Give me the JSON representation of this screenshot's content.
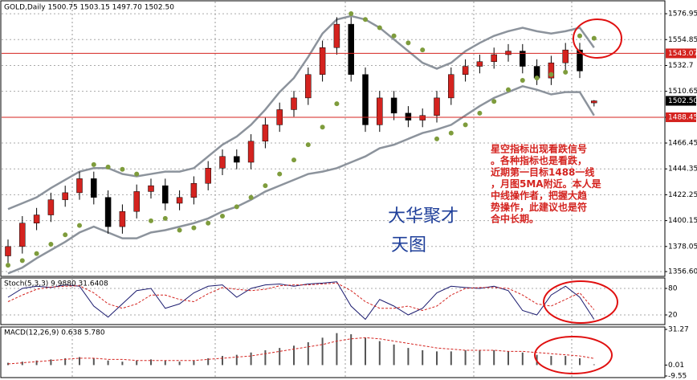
{
  "chart_data": [
    {
      "type": "candlestick",
      "title": "GOLD,Daily  1500.75 1503.15 1497.70 1502.50",
      "open": [
        1370,
        1378,
        1398,
        1405,
        1418,
        1424,
        1436,
        1420,
        1395,
        1408,
        1425,
        1430,
        1415,
        1420,
        1432,
        1445,
        1455,
        1450,
        1468,
        1482,
        1495,
        1505,
        1525,
        1548,
        1568,
        1525,
        1482,
        1505,
        1492,
        1486,
        1490,
        1505,
        1525,
        1532,
        1536,
        1542,
        1545,
        1532,
        1522,
        1535,
        1546,
        1500.75
      ],
      "high": [
        1384,
        1404,
        1411,
        1424,
        1430,
        1442,
        1442,
        1426,
        1414,
        1431,
        1436,
        1436,
        1426,
        1438,
        1451,
        1461,
        1461,
        1474,
        1488,
        1501,
        1511,
        1531,
        1554,
        1574,
        1574,
        1531,
        1511,
        1511,
        1498,
        1496,
        1511,
        1531,
        1538,
        1542,
        1548,
        1551,
        1551,
        1538,
        1541,
        1552,
        1552,
        1503.15
      ],
      "low": [
        1364,
        1372,
        1392,
        1399,
        1412,
        1418,
        1414,
        1389,
        1389,
        1402,
        1419,
        1409,
        1409,
        1414,
        1426,
        1439,
        1444,
        1444,
        1462,
        1476,
        1489,
        1499,
        1519,
        1542,
        1519,
        1476,
        1476,
        1486,
        1480,
        1480,
        1484,
        1499,
        1519,
        1526,
        1530,
        1536,
        1526,
        1516,
        1516,
        1529,
        1522,
        1497.7
      ],
      "close": [
        1378,
        1398,
        1405,
        1418,
        1424,
        1436,
        1420,
        1395,
        1408,
        1425,
        1430,
        1415,
        1420,
        1432,
        1445,
        1455,
        1450,
        1468,
        1482,
        1495,
        1505,
        1525,
        1548,
        1568,
        1525,
        1482,
        1505,
        1492,
        1486,
        1490,
        1505,
        1525,
        1532,
        1536,
        1542,
        1545,
        1532,
        1522,
        1535,
        1546,
        1528,
        1502.5
      ],
      "up_color": "#d4231f",
      "down_color": "#000000",
      "bands": {
        "color": "#8c939c",
        "upper": [
          1410,
          1415,
          1420,
          1428,
          1435,
          1442,
          1445,
          1445,
          1440,
          1438,
          1440,
          1442,
          1442,
          1445,
          1455,
          1465,
          1472,
          1482,
          1495,
          1510,
          1522,
          1540,
          1560,
          1572,
          1575,
          1572,
          1565,
          1555,
          1545,
          1535,
          1530,
          1535,
          1545,
          1552,
          1558,
          1562,
          1565,
          1562,
          1560,
          1562,
          1565,
          1548
        ],
        "lower": [
          1355,
          1360,
          1368,
          1375,
          1382,
          1390,
          1395,
          1390,
          1385,
          1385,
          1390,
          1392,
          1395,
          1398,
          1402,
          1408,
          1412,
          1418,
          1425,
          1430,
          1435,
          1440,
          1442,
          1445,
          1450,
          1455,
          1462,
          1465,
          1470,
          1475,
          1478,
          1482,
          1490,
          1498,
          1505,
          1510,
          1515,
          1512,
          1508,
          1510,
          1510,
          1490
        ]
      },
      "sar": {
        "color": "#7e9c3c",
        "values": [
          1362,
          1366,
          1372,
          1380,
          1388,
          1396,
          1448,
          1446,
          1444,
          1440,
          1400,
          1402,
          1392,
          1394,
          1398,
          1404,
          1412,
          1420,
          1430,
          1440,
          1452,
          1465,
          1480,
          1500,
          1577,
          1572,
          1565,
          1558,
          1552,
          1546,
          1470,
          1475,
          1482,
          1492,
          1502,
          1512,
          1520,
          1522,
          1525,
          1527,
          1558,
          1556
        ]
      },
      "ylim": [
        1353.2,
        1587.3
      ],
      "yticks": [
        1576.95,
        1554.85,
        1532.7,
        1510.65,
        1488.45,
        1466.45,
        1444.35,
        1422.25,
        1400.15,
        1378.05,
        {
          "value": 1356.6,
          "label": "1356.60"
        }
      ],
      "levels": [
        {
          "value": 1543.07,
          "color": "#d4231f"
        },
        {
          "value": 1488.45,
          "color": "#d4231f"
        }
      ],
      "last_price": {
        "value": 1502.5,
        "label": "1502.50"
      },
      "grid": true,
      "annotation": [
        "星空指标出现看跌信号",
        "。各种指标也是看跌，",
        "近期第一目标1488一线",
        "，月图5MA附近。本人是",
        "中线操作者，把握大趋",
        "势操作，此建议也是符",
        "合中长期。"
      ],
      "watermark": [
        "大华聚才",
        "天图"
      ]
    },
    {
      "type": "line",
      "title": "Stoch(5,3,3) 9.9880 31.6408",
      "series": [
        {
          "color": "#1a1a6e",
          "dash": false,
          "values": [
            60,
            80,
            85,
            82,
            88,
            85,
            40,
            15,
            45,
            75,
            80,
            35,
            45,
            70,
            85,
            88,
            60,
            80,
            88,
            90,
            85,
            90,
            92,
            95,
            40,
            10,
            55,
            40,
            20,
            35,
            70,
            85,
            82,
            80,
            85,
            75,
            30,
            20,
            65,
            85,
            60,
            9.988
          ]
        },
        {
          "color": "#d4231f",
          "dash": true,
          "values": [
            50,
            65,
            78,
            83,
            85,
            86,
            70,
            45,
            35,
            45,
            65,
            65,
            55,
            50,
            68,
            82,
            78,
            75,
            78,
            86,
            88,
            88,
            90,
            92,
            75,
            50,
            35,
            35,
            40,
            30,
            40,
            65,
            80,
            82,
            82,
            80,
            65,
            45,
            40,
            55,
            70,
            31.6408
          ]
        }
      ],
      "ylim": [
        0,
        100
      ],
      "yticks": [
        80,
        20
      ]
    },
    {
      "type": "bar",
      "title": "MACD(12,26,9) 0.638 5.780",
      "values": [
        2,
        3,
        4,
        5,
        6,
        7,
        6,
        4,
        3,
        4,
        5,
        4,
        3,
        4,
        6,
        8,
        9,
        11,
        13,
        15,
        17,
        20,
        24,
        28,
        27,
        24,
        21,
        18,
        15,
        13,
        12,
        12,
        13,
        13,
        13,
        12,
        11,
        9,
        8,
        8,
        6,
        0.638
      ],
      "color": "#555555",
      "signal": {
        "color": "#d4231f",
        "values": [
          1,
          2,
          3,
          4,
          5,
          6,
          6,
          5,
          5,
          4,
          4,
          4,
          4,
          4,
          5,
          6,
          7,
          8,
          10,
          12,
          14,
          16,
          18,
          21,
          23,
          24,
          23,
          21,
          19,
          17,
          15,
          14,
          13,
          13,
          13,
          12,
          12,
          11,
          10,
          9,
          8,
          5.78
        ]
      },
      "ylim": [
        -9.55,
        31.27
      ],
      "yticks": [
        31.27,
        0.01,
        -9.55
      ]
    }
  ]
}
